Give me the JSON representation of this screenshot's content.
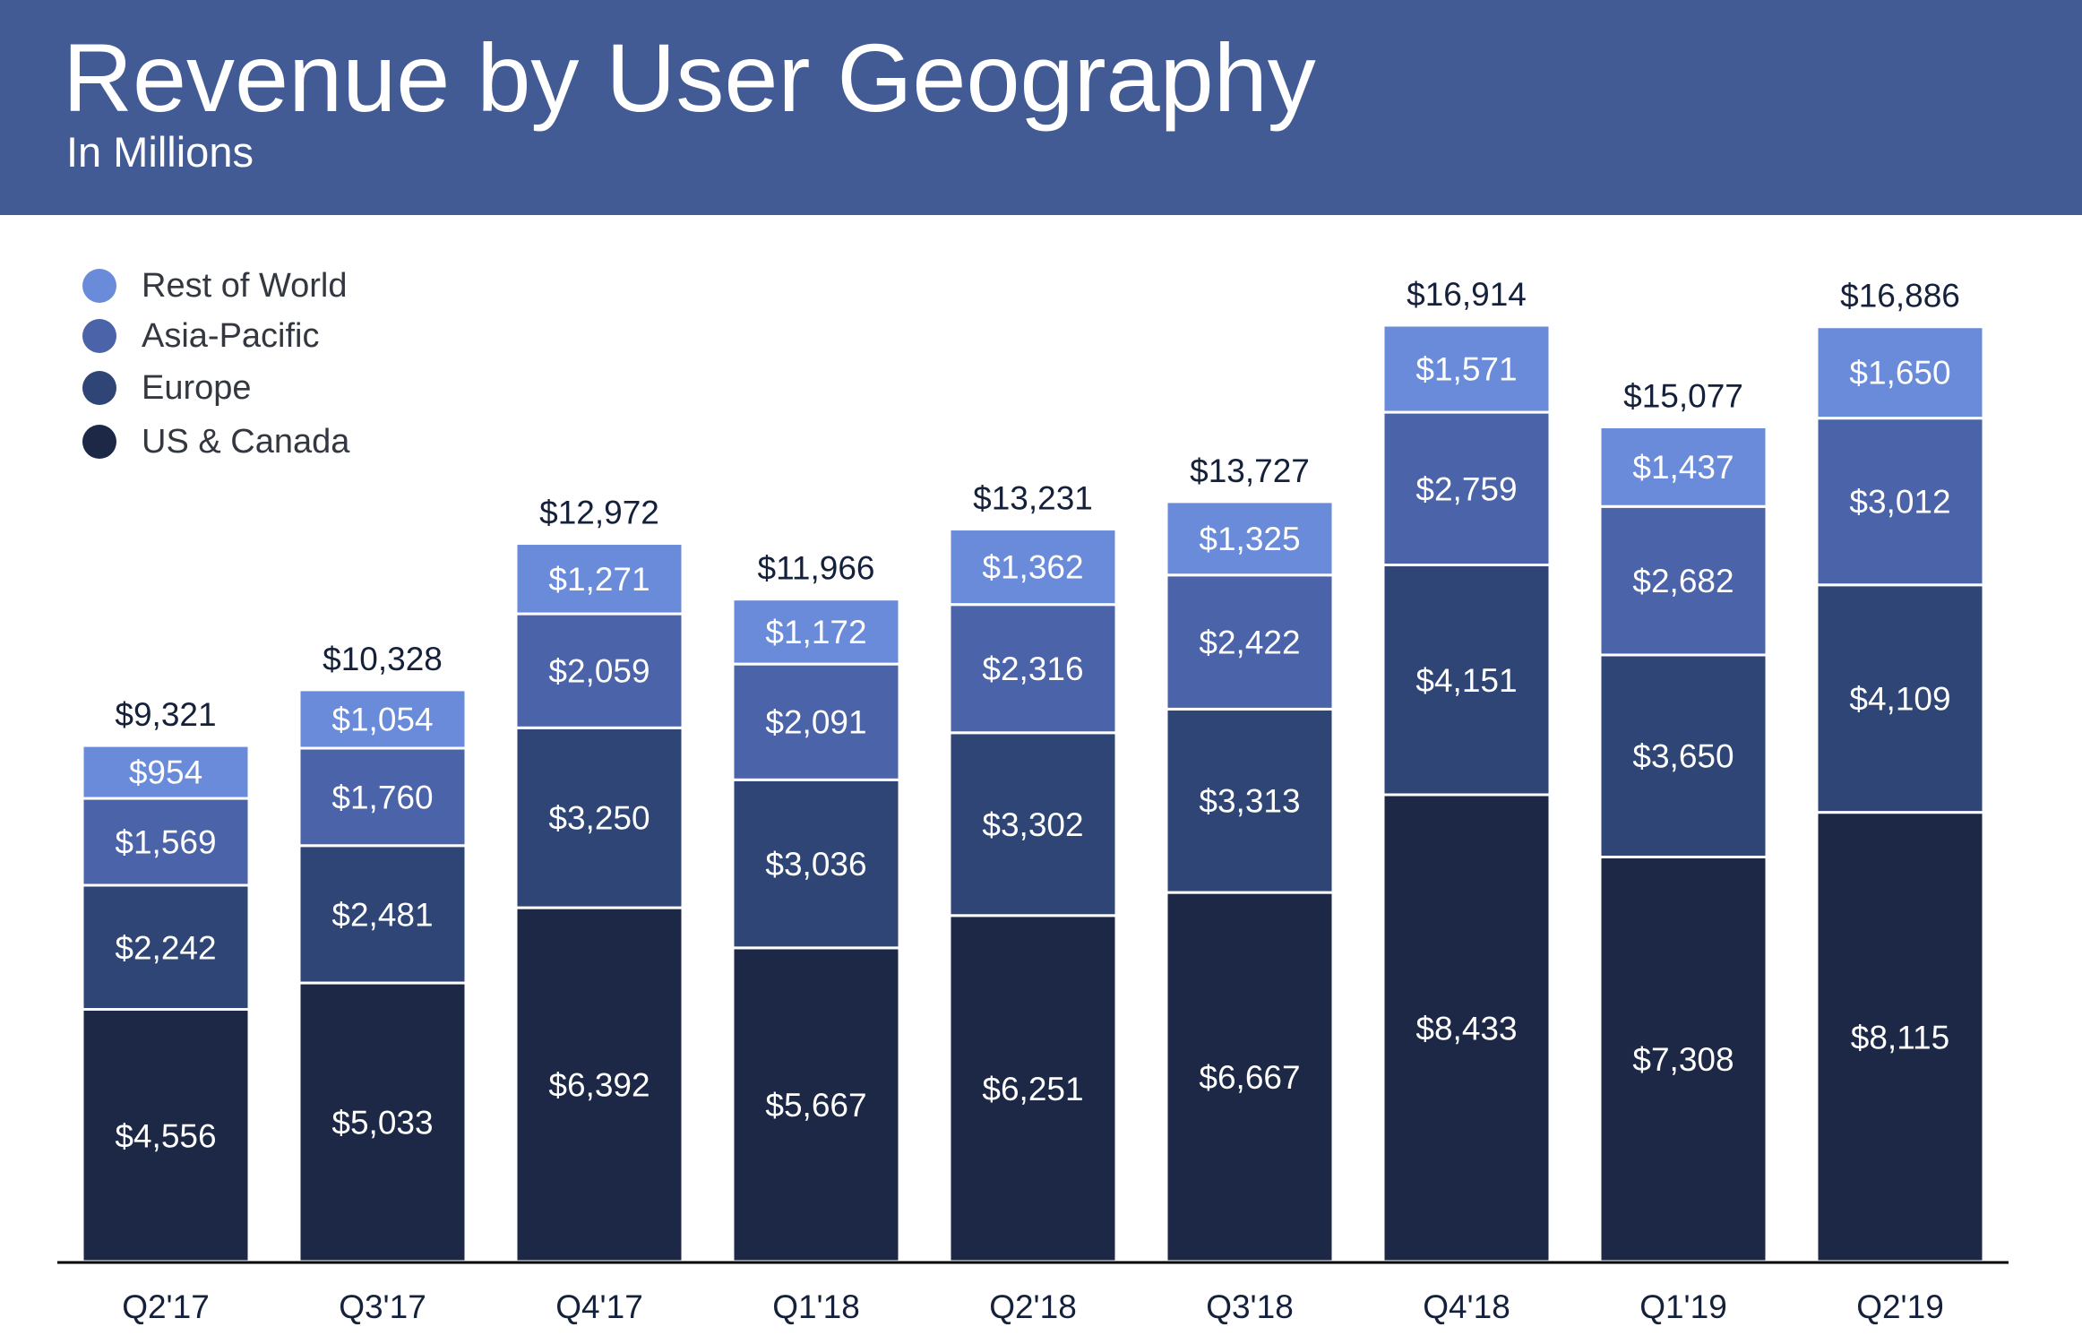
{
  "header": {
    "title": "Revenue by User Geography",
    "subtitle": "In Millions"
  },
  "colors": {
    "header_bg": "#435b94",
    "rest_of_world": "#6a8bd9",
    "asia_pacific": "#4b63a8",
    "europe": "#2e4575",
    "us_canada": "#1c2846",
    "segment_label": "#ffffff",
    "total_label": "#15203a",
    "axis": "#000000"
  },
  "legend": {
    "items": [
      {
        "label": "Rest of World",
        "color": "#6a8bd9"
      },
      {
        "label": "Asia-Pacific",
        "color": "#4b63a8"
      },
      {
        "label": "Europe",
        "color": "#2e4575"
      },
      {
        "label": "US & Canada",
        "color": "#1c2846"
      }
    ]
  },
  "chart_data": {
    "type": "bar",
    "stacked": true,
    "title": "Revenue by User Geography",
    "subtitle": "In Millions",
    "categories": [
      "Q2'17",
      "Q3'17",
      "Q4'17",
      "Q1'18",
      "Q2'18",
      "Q3'18",
      "Q4'18",
      "Q1'19",
      "Q2'19"
    ],
    "series": [
      {
        "name": "US & Canada",
        "color": "#1c2846",
        "values": [
          4556,
          5033,
          6392,
          5667,
          6251,
          6667,
          8433,
          7308,
          8115
        ]
      },
      {
        "name": "Europe",
        "color": "#2e4575",
        "values": [
          2242,
          2481,
          3250,
          3036,
          3302,
          3313,
          4151,
          3650,
          4109
        ]
      },
      {
        "name": "Asia-Pacific",
        "color": "#4b63a8",
        "values": [
          1569,
          1760,
          2059,
          2091,
          2316,
          2422,
          2759,
          2682,
          3012
        ]
      },
      {
        "name": "Rest of World",
        "color": "#6a8bd9",
        "values": [
          954,
          1054,
          1271,
          1172,
          1362,
          1325,
          1571,
          1437,
          1650
        ]
      }
    ],
    "totals": [
      9321,
      10328,
      12972,
      11966,
      13231,
      13727,
      16914,
      15077,
      16886
    ],
    "value_prefix": "$",
    "legend_position": "top-left",
    "grid": false,
    "xlabel": "",
    "ylabel": ""
  }
}
